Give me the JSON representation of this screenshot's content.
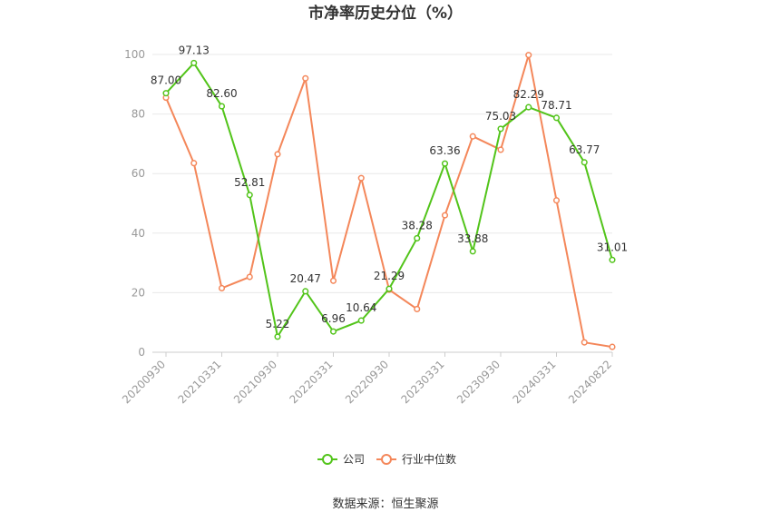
{
  "chart_data": {
    "type": "line",
    "title": "市净率历史分位（%）",
    "source": "数据来源：恒生聚源",
    "ylim": [
      0,
      100
    ],
    "yticks": [
      0,
      20,
      40,
      60,
      80,
      100
    ],
    "x_labels": [
      "20200930",
      "20210331",
      "20210930",
      "20220331",
      "20220930",
      "20230331",
      "20230930",
      "20240331",
      "20240822"
    ],
    "grid": true,
    "legend_position": "bottom",
    "series": [
      {
        "name": "公司",
        "color": "#52c41a",
        "values": [
          87.0,
          97.13,
          82.6,
          52.81,
          5.22,
          20.47,
          6.96,
          10.64,
          21.29,
          38.28,
          63.36,
          33.88,
          75.03,
          82.29,
          78.71,
          63.77,
          31.01
        ],
        "labels": [
          "87.00",
          "97.13",
          "82.60",
          "52.81",
          "5.22",
          "20.47",
          "6.96",
          "10.64",
          "21.29",
          "38.28",
          "63.36",
          "33.88",
          "75.03",
          "82.29",
          "78.71",
          "63.77",
          "31.01"
        ]
      },
      {
        "name": "行业中位数",
        "color": "#f4875a",
        "values": [
          85.5,
          63.5,
          21.5,
          25.3,
          66.5,
          92.0,
          24.0,
          58.5,
          21.0,
          14.5,
          46.0,
          72.5,
          68.0,
          99.8,
          51.0,
          3.3,
          1.8
        ]
      }
    ]
  }
}
